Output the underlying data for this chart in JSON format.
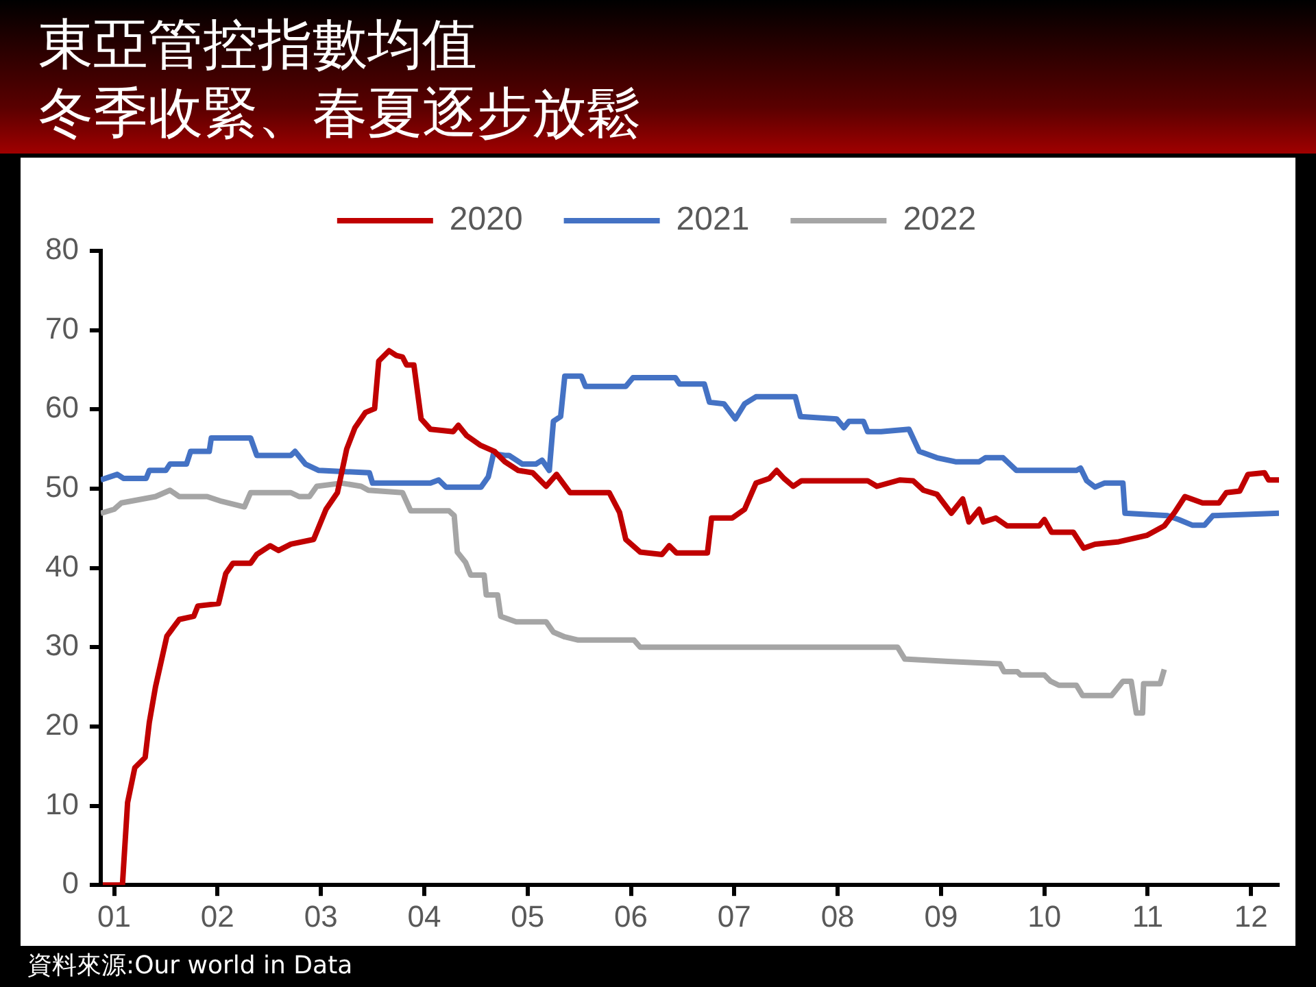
{
  "chart_data": {
    "type": "line",
    "title": "東亞管控指數均值",
    "subtitle": "冬季收緊、春夏逐步放鬆",
    "annotations": [
      "資料來源:Our world in Data"
    ],
    "xlim": [
      0.87,
      12.27
    ],
    "xticks": [
      {
        "value": 1,
        "label": "01"
      },
      {
        "value": 2,
        "label": "02"
      },
      {
        "value": 3,
        "label": "03"
      },
      {
        "value": 4,
        "label": "04"
      },
      {
        "value": 5,
        "label": "05"
      },
      {
        "value": 6,
        "label": "06"
      },
      {
        "value": 7,
        "label": "07"
      },
      {
        "value": 8,
        "label": "08"
      },
      {
        "value": 9,
        "label": "09"
      },
      {
        "value": 10,
        "label": "10"
      },
      {
        "value": 11,
        "label": "11"
      },
      {
        "value": 12,
        "label": "12"
      }
    ],
    "ylim": [
      0,
      80
    ],
    "yticks": [
      0,
      10,
      20,
      30,
      40,
      50,
      60,
      70,
      80
    ],
    "grid": false,
    "legend": "top",
    "marker": "none",
    "line_style": "solid",
    "series": [
      {
        "name": "2020",
        "color": "#c00000",
        "x": [
          0.89,
          1.08,
          1.13,
          1.2,
          1.3,
          1.34,
          1.4,
          1.51,
          1.63,
          1.77,
          1.81,
          2.01,
          2.08,
          2.15,
          2.32,
          2.38,
          2.51,
          2.59,
          2.71,
          2.93,
          3.05,
          3.16,
          3.25,
          3.33,
          3.43,
          3.52,
          3.56,
          3.66,
          3.73,
          3.79,
          3.83,
          3.9,
          3.97,
          4.06,
          4.28,
          4.33,
          4.41,
          4.54,
          4.68,
          4.78,
          4.91,
          5.05,
          5.18,
          5.28,
          5.41,
          5.79,
          5.89,
          5.95,
          6.09,
          6.3,
          6.37,
          6.44,
          6.74,
          6.78,
          6.98,
          7.1,
          7.21,
          7.34,
          7.41,
          7.48,
          7.57,
          7.65,
          8.29,
          8.38,
          8.6,
          8.73,
          8.83,
          8.96,
          9.1,
          9.21,
          9.27,
          9.37,
          9.41,
          9.53,
          9.64,
          9.95,
          10,
          10.07,
          10.28,
          10.38,
          10.49,
          10.72,
          10.99,
          11.16,
          11.26,
          11.36,
          11.53,
          11.69,
          11.76,
          11.89,
          11.97,
          12.13,
          12.17,
          12.27
        ],
        "values": [
          0,
          0,
          10.4,
          14.8,
          16.1,
          20.5,
          25,
          31.4,
          33.5,
          33.9,
          35.2,
          35.5,
          39.3,
          40.6,
          40.6,
          41.7,
          42.8,
          42.2,
          43,
          43.6,
          47.4,
          49.5,
          55,
          57.7,
          59.6,
          60.1,
          66.1,
          67.4,
          66.8,
          66.6,
          65.6,
          65.6,
          58.8,
          57.5,
          57.2,
          58,
          56.7,
          55.5,
          54.7,
          53.4,
          52.3,
          52,
          50.3,
          51.8,
          49.5,
          49.5,
          47,
          43.6,
          42,
          41.7,
          42.8,
          41.9,
          41.9,
          46.3,
          46.3,
          47.4,
          50.7,
          51.3,
          52.3,
          51.3,
          50.3,
          51,
          51,
          50.3,
          51.1,
          51,
          49.8,
          49.3,
          46.9,
          48.7,
          45.8,
          47.4,
          45.8,
          46.3,
          45.3,
          45.3,
          46.1,
          44.5,
          44.5,
          42.5,
          43,
          43.3,
          44.1,
          45.3,
          47,
          49,
          48.2,
          48.2,
          49.5,
          49.7,
          51.8,
          52,
          51.1,
          51.1
        ]
      },
      {
        "name": "2021",
        "color": "#4472c4",
        "x": [
          0.87,
          1.03,
          1.09,
          1.31,
          1.34,
          1.5,
          1.54,
          1.7,
          1.74,
          1.92,
          1.94,
          2.32,
          2.38,
          2.71,
          2.75,
          2.85,
          2.98,
          3.47,
          3.5,
          4.06,
          4.14,
          4.21,
          4.55,
          4.62,
          4.67,
          4.78,
          4.82,
          4.95,
          5.08,
          5.14,
          5.21,
          5.25,
          5.32,
          5.36,
          5.52,
          5.56,
          5.95,
          6.02,
          6.43,
          6.47,
          6.71,
          6.76,
          6.9,
          7.01,
          7.1,
          7.21,
          7.59,
          7.64,
          7.99,
          8.06,
          8.11,
          8.25,
          8.29,
          8.42,
          8.69,
          8.79,
          8.96,
          9.14,
          9.37,
          9.43,
          9.6,
          9.73,
          10.31,
          10.35,
          10.41,
          10.49,
          10.58,
          10.76,
          10.78,
          11.19,
          11.3,
          11.43,
          11.55,
          11.63,
          12.27
        ],
        "values": [
          51.1,
          51.8,
          51.3,
          51.3,
          52.3,
          52.3,
          53.1,
          53.1,
          54.7,
          54.7,
          56.4,
          56.4,
          54.2,
          54.2,
          54.7,
          53.1,
          52.3,
          52,
          50.7,
          50.7,
          51.1,
          50.2,
          50.2,
          51.5,
          54.4,
          54.2,
          54.2,
          53.1,
          53.1,
          53.6,
          52.3,
          58.5,
          59.1,
          64.2,
          64.2,
          62.9,
          62.9,
          64,
          64,
          63.2,
          63.2,
          60.9,
          60.7,
          58.8,
          60.7,
          61.6,
          61.6,
          59.1,
          58.8,
          57.7,
          58.5,
          58.5,
          57.2,
          57.2,
          57.5,
          54.7,
          53.9,
          53.4,
          53.4,
          53.9,
          53.9,
          52.3,
          52.3,
          52.6,
          51,
          50.2,
          50.7,
          50.7,
          46.9,
          46.6,
          46.1,
          45.4,
          45.4,
          46.6,
          46.9
        ]
      },
      {
        "name": "2022",
        "color": "#a5a5a5",
        "x": [
          0.87,
          1,
          1.07,
          1.4,
          1.54,
          1.63,
          1.9,
          2.04,
          2.26,
          2.32,
          2.71,
          2.79,
          2.89,
          2.96,
          3.2,
          3.39,
          3.46,
          3.79,
          3.87,
          4.24,
          4.29,
          4.32,
          4.4,
          4.45,
          4.58,
          4.6,
          4.71,
          4.74,
          4.89,
          5.18,
          5.25,
          5.36,
          5.49,
          6.03,
          6.09,
          8.58,
          8.65,
          9.07,
          9.57,
          9.61,
          9.74,
          9.77,
          10,
          10.06,
          10.14,
          10.31,
          10.37,
          10.65,
          10.76,
          10.84,
          10.89,
          10.95,
          10.96,
          11.12,
          11.16
        ],
        "values": [
          46.9,
          47.4,
          48.2,
          49,
          49.8,
          49,
          49,
          48.4,
          47.7,
          49.5,
          49.5,
          49,
          49,
          50.3,
          50.7,
          50.3,
          49.8,
          49.5,
          47.2,
          47.2,
          46.6,
          42,
          40.7,
          39.1,
          39.1,
          36.6,
          36.6,
          33.9,
          33.2,
          33.2,
          31.9,
          31.3,
          30.9,
          30.9,
          30,
          30,
          28.5,
          28.2,
          27.9,
          26.9,
          26.9,
          26.5,
          26.5,
          25.7,
          25.2,
          25.2,
          23.9,
          23.9,
          25.7,
          25.7,
          21.7,
          21.7,
          25.4,
          25.4,
          27.2
        ]
      }
    ]
  }
}
